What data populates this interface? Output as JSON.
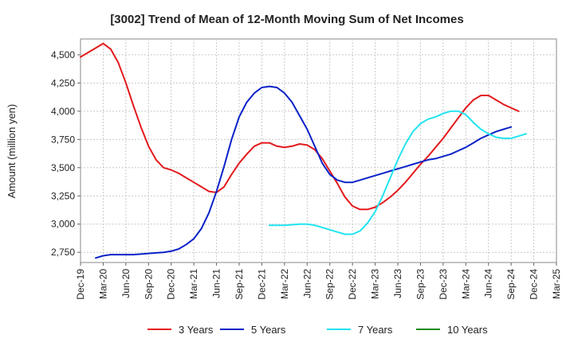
{
  "chart_data": {
    "type": "line",
    "title": "[3002]  Trend of Mean of 12-Month Moving Sum of Net Incomes",
    "ylabel": "Amount (million yen)",
    "xlabel": "",
    "x_ticks": [
      "Dec-19",
      "Mar-20",
      "Jun-20",
      "Sep-20",
      "Dec-20",
      "Mar-21",
      "Jun-21",
      "Sep-21",
      "Dec-21",
      "Mar-22",
      "Jun-22",
      "Sep-22",
      "Dec-22",
      "Mar-23",
      "Jun-23",
      "Sep-23",
      "Dec-23",
      "Mar-24",
      "Jun-24",
      "Sep-24",
      "Dec-24",
      "Mar-25"
    ],
    "y_ticks": [
      2750,
      3000,
      3250,
      3500,
      3750,
      4000,
      4250,
      4500
    ],
    "y_tick_labels": [
      "2,750",
      "3,000",
      "3,250",
      "3,500",
      "3,750",
      "4,000",
      "4,250",
      "4,500"
    ],
    "ylim": [
      2660,
      4640
    ],
    "grid": true,
    "legend_position": "bottom",
    "series": [
      {
        "name": "3 Years",
        "color": "#e31a1c",
        "start_index": 0,
        "values": [
          4480,
          4520,
          4560,
          4600,
          4550,
          4430,
          4250,
          4050,
          3860,
          3690,
          3570,
          3500,
          3480,
          3450,
          3410,
          3370,
          3330,
          3290,
          3280,
          3330,
          3440,
          3540,
          3620,
          3690,
          3720,
          3720,
          3690,
          3680,
          3690,
          3710,
          3700,
          3660,
          3580,
          3470,
          3360,
          3240,
          3160,
          3130,
          3130,
          3150,
          3190,
          3240,
          3300,
          3370,
          3450,
          3530,
          3600,
          3680,
          3760,
          3850,
          3940,
          4030,
          4100,
          4140,
          4140,
          4100,
          4060,
          4030,
          4000
        ]
      },
      {
        "name": "5 Years",
        "color": "#0a22c8",
        "start_index": 2,
        "values": [
          2700,
          2720,
          2730,
          2730,
          2730,
          2730,
          2735,
          2740,
          2745,
          2750,
          2760,
          2780,
          2820,
          2870,
          2960,
          3100,
          3290,
          3510,
          3750,
          3950,
          4080,
          4160,
          4210,
          4220,
          4210,
          4160,
          4080,
          3960,
          3840,
          3690,
          3540,
          3440,
          3390,
          3370,
          3370,
          3390,
          3410,
          3430,
          3450,
          3470,
          3490,
          3510,
          3530,
          3550,
          3570,
          3580,
          3600,
          3620,
          3650,
          3680,
          3720,
          3760,
          3790,
          3820,
          3840,
          3860
        ]
      },
      {
        "name": "7 Years",
        "color": "#22e4f0",
        "start_index": 25,
        "values": [
          2990,
          2990,
          2990,
          2995,
          3000,
          3000,
          2990,
          2970,
          2950,
          2930,
          2910,
          2910,
          2940,
          3010,
          3110,
          3250,
          3410,
          3570,
          3710,
          3820,
          3890,
          3930,
          3950,
          3980,
          4000,
          4000,
          3970,
          3900,
          3840,
          3800,
          3770,
          3760,
          3760,
          3780,
          3800
        ]
      },
      {
        "name": "10 Years",
        "color": "#1a8a1a",
        "start_index": 0,
        "values": []
      }
    ]
  }
}
